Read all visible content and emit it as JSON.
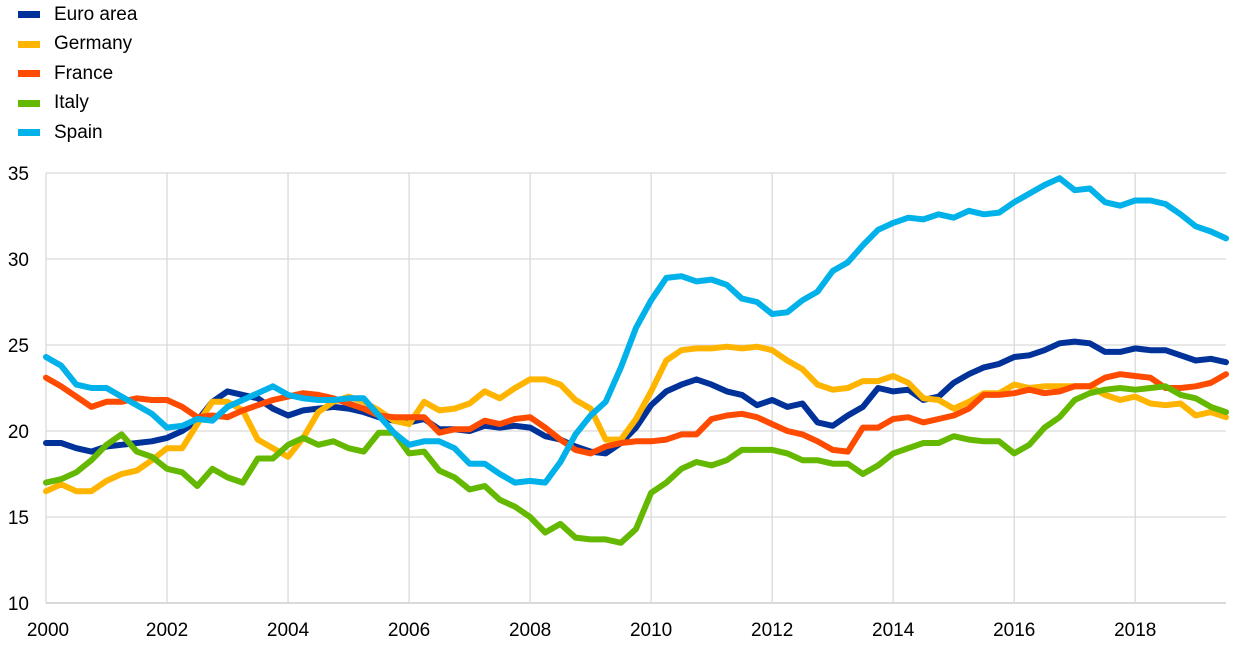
{
  "chart_data": {
    "type": "line",
    "title": "",
    "xlabel": "",
    "ylabel": "",
    "x_start": 2000,
    "x_step_years": 0.25,
    "xlim": [
      2000,
      2019.5
    ],
    "ylim": [
      10,
      35
    ],
    "yticks": [
      "10",
      "15",
      "20",
      "25",
      "30",
      "35"
    ],
    "xticks": [
      "2000",
      "2002",
      "2004",
      "2006",
      "2008",
      "2010",
      "2012",
      "2014",
      "2016",
      "2018"
    ],
    "grid": true,
    "legend_position": "top-left",
    "series": [
      {
        "name": "Euro area",
        "color": "#003299",
        "values": [
          19.3,
          19.3,
          19.0,
          18.8,
          19.1,
          19.2,
          19.3,
          19.4,
          19.6,
          20.0,
          20.6,
          21.7,
          22.3,
          22.1,
          21.9,
          21.3,
          20.9,
          21.2,
          21.3,
          21.4,
          21.3,
          21.1,
          20.8,
          20.6,
          20.5,
          20.7,
          20.1,
          20.1,
          20.0,
          20.3,
          20.2,
          20.3,
          20.2,
          19.7,
          19.5,
          19.1,
          18.8,
          18.7,
          19.3,
          20.2,
          21.5,
          22.3,
          22.7,
          23.0,
          22.7,
          22.3,
          22.1,
          21.5,
          21.8,
          21.4,
          21.6,
          20.5,
          20.3,
          20.9,
          21.4,
          22.5,
          22.3,
          22.4,
          21.8,
          22.0,
          22.8,
          23.3,
          23.7,
          23.9,
          24.3,
          24.4,
          24.7,
          25.1,
          25.2,
          25.1,
          24.6,
          24.6,
          24.8,
          24.7,
          24.7,
          24.4,
          24.1,
          24.2,
          24.0
        ]
      },
      {
        "name": "Germany",
        "color": "#ffb400",
        "values": [
          16.5,
          16.9,
          16.5,
          16.5,
          17.1,
          17.5,
          17.7,
          18.3,
          19.0,
          19.0,
          20.4,
          21.7,
          21.7,
          21.2,
          19.5,
          19.0,
          18.5,
          19.6,
          21.1,
          21.7,
          22.0,
          21.7,
          21.2,
          20.6,
          20.4,
          21.7,
          21.2,
          21.3,
          21.6,
          22.3,
          21.9,
          22.5,
          23.0,
          23.0,
          22.7,
          21.8,
          21.3,
          19.5,
          19.5,
          20.7,
          22.3,
          24.1,
          24.7,
          24.8,
          24.8,
          24.9,
          24.8,
          24.9,
          24.7,
          24.1,
          23.6,
          22.7,
          22.4,
          22.5,
          22.9,
          22.9,
          23.2,
          22.8,
          21.9,
          21.8,
          21.3,
          21.7,
          22.2,
          22.2,
          22.7,
          22.5,
          22.6,
          22.6,
          22.6,
          22.6,
          22.1,
          21.8,
          22.0,
          21.6,
          21.5,
          21.6,
          20.9,
          21.1,
          20.8
        ]
      },
      {
        "name": "France",
        "color": "#ff4b00",
        "values": [
          23.1,
          22.6,
          22.0,
          21.4,
          21.7,
          21.7,
          21.9,
          21.8,
          21.8,
          21.4,
          20.8,
          20.9,
          20.8,
          21.2,
          21.5,
          21.8,
          22.0,
          22.2,
          22.1,
          21.9,
          21.6,
          21.3,
          20.9,
          20.8,
          20.8,
          20.8,
          19.9,
          20.1,
          20.1,
          20.6,
          20.4,
          20.7,
          20.8,
          20.2,
          19.5,
          18.9,
          18.7,
          19.1,
          19.3,
          19.4,
          19.4,
          19.5,
          19.8,
          19.8,
          20.7,
          20.9,
          21.0,
          20.8,
          20.4,
          20.0,
          19.8,
          19.4,
          18.9,
          18.8,
          20.2,
          20.2,
          20.7,
          20.8,
          20.5,
          20.7,
          20.9,
          21.3,
          22.1,
          22.1,
          22.2,
          22.4,
          22.2,
          22.3,
          22.6,
          22.6,
          23.1,
          23.3,
          23.2,
          23.1,
          22.5,
          22.5,
          22.6,
          22.8,
          23.3
        ]
      },
      {
        "name": "Italy",
        "color": "#65b800",
        "values": [
          17.0,
          17.2,
          17.6,
          18.3,
          19.2,
          19.8,
          18.8,
          18.5,
          17.8,
          17.6,
          16.8,
          17.8,
          17.3,
          17.0,
          18.4,
          18.4,
          19.2,
          19.6,
          19.2,
          19.4,
          19.0,
          18.8,
          19.9,
          19.9,
          18.7,
          18.8,
          17.7,
          17.3,
          16.6,
          16.8,
          16.0,
          15.6,
          15.0,
          14.1,
          14.6,
          13.8,
          13.7,
          13.7,
          13.5,
          14.3,
          16.4,
          17.0,
          17.8,
          18.2,
          18.0,
          18.3,
          18.9,
          18.9,
          18.9,
          18.7,
          18.3,
          18.3,
          18.1,
          18.1,
          17.5,
          18.0,
          18.7,
          19.0,
          19.3,
          19.3,
          19.7,
          19.5,
          19.4,
          19.4,
          18.7,
          19.2,
          20.2,
          20.8,
          21.8,
          22.2,
          22.4,
          22.5,
          22.4,
          22.5,
          22.6,
          22.1,
          21.9,
          21.4,
          21.1
        ]
      },
      {
        "name": "Spain",
        "color": "#00b1ea",
        "values": [
          24.3,
          23.8,
          22.7,
          22.5,
          22.5,
          22.0,
          21.5,
          21.0,
          20.2,
          20.3,
          20.7,
          20.6,
          21.4,
          21.8,
          22.2,
          22.6,
          22.1,
          21.9,
          21.8,
          21.8,
          21.9,
          21.9,
          20.9,
          19.9,
          19.2,
          19.4,
          19.4,
          19.0,
          18.1,
          18.1,
          17.5,
          17.0,
          17.1,
          17.0,
          18.2,
          19.8,
          20.9,
          21.7,
          23.7,
          26.0,
          27.6,
          28.9,
          29.0,
          28.7,
          28.8,
          28.5,
          27.7,
          27.5,
          26.8,
          26.9,
          27.6,
          28.1,
          29.3,
          29.8,
          30.8,
          31.7,
          32.1,
          32.4,
          32.3,
          32.6,
          32.4,
          32.8,
          32.6,
          32.7,
          33.3,
          33.8,
          34.3,
          34.7,
          34.0,
          34.1,
          33.3,
          33.1,
          33.4,
          33.4,
          33.2,
          32.6,
          31.9,
          31.6,
          31.2
        ]
      }
    ]
  }
}
